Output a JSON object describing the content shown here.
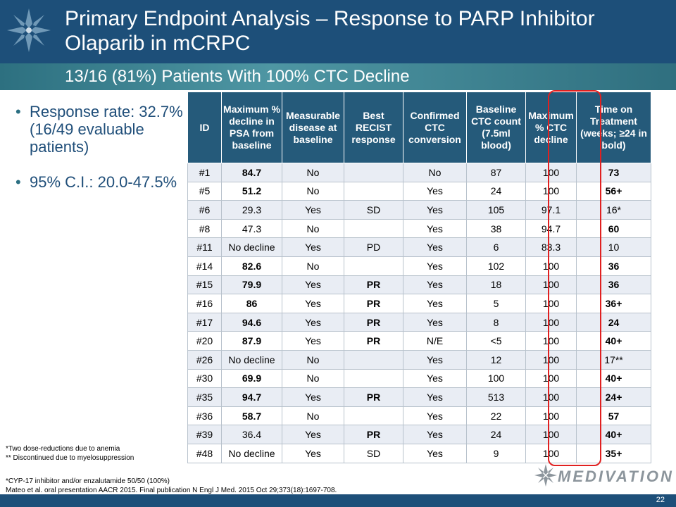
{
  "title": "Primary Endpoint Analysis – Response to PARP Inhibitor Olaparib in mCRPC",
  "subtitle": "13/16 (81%) Patients With 100% CTC Decline",
  "bullets": [
    "Response rate: 32.7% (16/49 evaluable patients)",
    "95% C.I.: 20.0-47.5%"
  ],
  "table": {
    "headers": [
      "ID",
      "Maximum % decline in PSA from baseline",
      "Measurable disease at baseline",
      "Best RECIST response",
      "Confirmed CTC conversion",
      "Baseline CTC count (7.5ml blood)",
      "Maximum % CTC decline",
      "Time on Treatment (weeks; ≥24 in bold)"
    ],
    "rows": [
      [
        "#1",
        "84.7",
        "No",
        "",
        "No",
        "87",
        "100",
        "73"
      ],
      [
        "#5",
        "51.2",
        "No",
        "",
        "Yes",
        "24",
        "100",
        "56+"
      ],
      [
        "#6",
        "29.3",
        "Yes",
        "SD",
        "Yes",
        "105",
        "97.1",
        "16*"
      ],
      [
        "#8",
        "47.3",
        "No",
        "",
        "Yes",
        "38",
        "94.7",
        "60"
      ],
      [
        "#11",
        "No decline",
        "Yes",
        "PD",
        "Yes",
        "6",
        "83.3",
        "10"
      ],
      [
        "#14",
        "82.6",
        "No",
        "",
        "Yes",
        "102",
        "100",
        "36"
      ],
      [
        "#15",
        "79.9",
        "Yes",
        "PR",
        "Yes",
        "18",
        "100",
        "36"
      ],
      [
        "#16",
        "86",
        "Yes",
        "PR",
        "Yes",
        "5",
        "100",
        "36+"
      ],
      [
        "#17",
        "94.6",
        "Yes",
        "PR",
        "Yes",
        "8",
        "100",
        "24"
      ],
      [
        "#20",
        "87.9",
        "Yes",
        "PR",
        "N/E",
        "<5",
        "100",
        "40+"
      ],
      [
        "#26",
        "No decline",
        "No",
        "",
        "Yes",
        "12",
        "100",
        "17**"
      ],
      [
        "#30",
        "69.9",
        "No",
        "",
        "Yes",
        "100",
        "100",
        "40+"
      ],
      [
        "#35",
        "94.7",
        "Yes",
        "PR",
        "Yes",
        "513",
        "100",
        "24+"
      ],
      [
        "#36",
        "58.7",
        "No",
        "",
        "Yes",
        "22",
        "100",
        "57"
      ],
      [
        "#39",
        "36.4",
        "Yes",
        "PR",
        "Yes",
        "24",
        "100",
        "40+"
      ],
      [
        "#48",
        "No decline",
        "Yes",
        "SD",
        "Yes",
        "9",
        "100",
        "35+"
      ]
    ]
  },
  "footnotes": [
    "*Two dose-reductions due to anemia",
    "** Discontinued due to myelosuppression"
  ],
  "references": [
    "*CYP-17 inhibitor and/or enzalutamide 50/50 (100%)",
    "Mateo et al. oral presentation AACR 2015. Final publication N Engl J Med. 2015 Oct 29;373(18):1697-708."
  ],
  "brand": "MEDIVATION",
  "page_number": "22",
  "colors": {
    "header": "#1d4f79",
    "table_header": "#255a7a",
    "row_alt": "#e9edf4",
    "highlight": "#e02020"
  }
}
